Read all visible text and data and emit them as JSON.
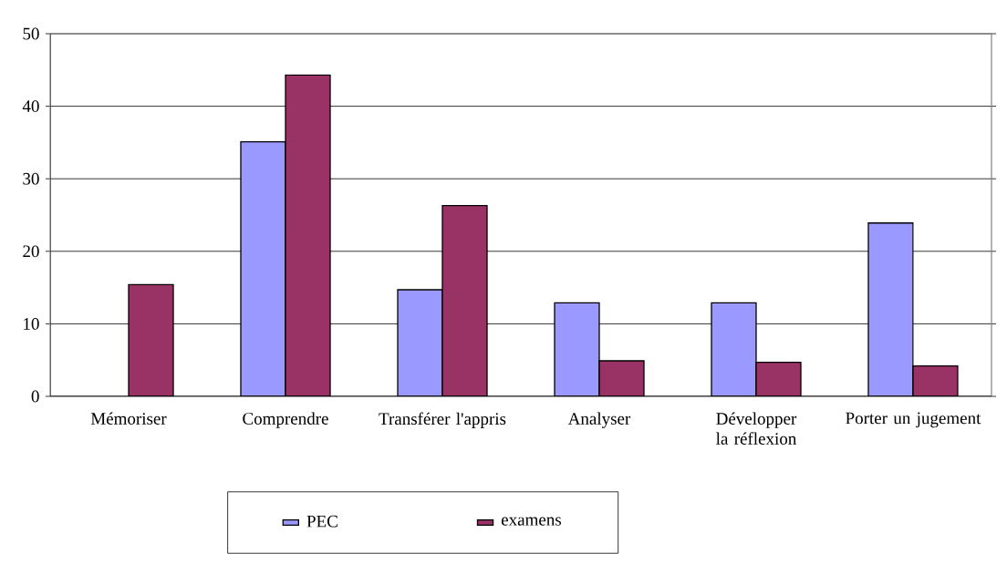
{
  "chart_data": {
    "type": "bar",
    "categories": [
      "Mémoriser",
      "Comprendre",
      "Transférer l'appris",
      "Analyser",
      "Développer la réflexion",
      "Porter un jugement"
    ],
    "series": [
      {
        "name": "PEC",
        "color": "#9999ff",
        "values": [
          null,
          35.1,
          14.7,
          12.9,
          12.9,
          23.9
        ]
      },
      {
        "name": "examens",
        "color": "#993366",
        "values": [
          15.4,
          44.3,
          26.3,
          4.9,
          4.7,
          4.2
        ]
      }
    ],
    "ylim": [
      0,
      50
    ],
    "yticks": [
      0,
      10,
      20,
      30,
      40,
      50
    ],
    "grid": "y",
    "legend": "bottom"
  }
}
